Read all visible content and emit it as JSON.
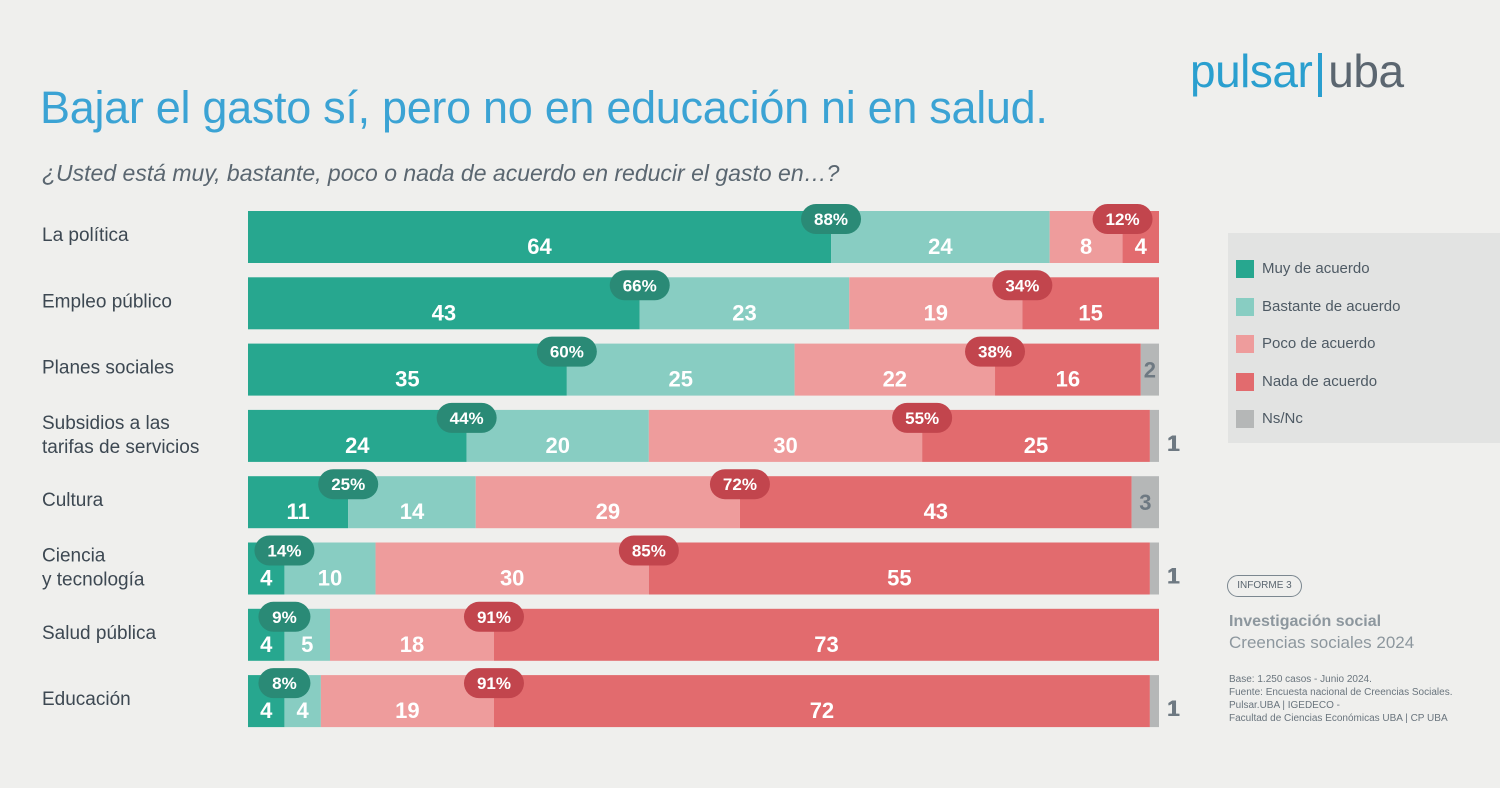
{
  "title": "Bajar el gasto sí, pero no en educación ni en salud.",
  "subtitle": "¿Usted está muy, bastante, poco o nada de acuerdo en reducir el gasto en…?",
  "logo": {
    "part1": "pulsar",
    "part2": "uba"
  },
  "legend": [
    {
      "label": "Muy de acuerdo",
      "color": "#27a78f"
    },
    {
      "label": "Bastante de acuerdo",
      "color": "#88cdc2"
    },
    {
      "label": "Poco de acuerdo",
      "color": "#ee9c9c"
    },
    {
      "label": "Nada de acuerdo",
      "color": "#e26b6e"
    },
    {
      "label": "Ns/Nc",
      "color": "#b5b7b7"
    }
  ],
  "report_tag": "INFORME 3",
  "investigation_title": "Investigación social",
  "investigation_subtitle": "Creencias sociales 2024",
  "source_lines": [
    "Base: 1.250 casos - Junio 2024.",
    "Fuente: Encuesta nacional de Creencias Sociales.",
    "Pulsar.UBA | IGEDECO -",
    "Facultad de Ciencias Económicas UBA | CP UBA"
  ],
  "chart_data": {
    "type": "bar",
    "orientation": "horizontal-stacked",
    "title": "Bajar el gasto sí, pero no en educación ni en salud.",
    "categories": [
      "La política",
      "Empleo público",
      "Planes sociales",
      "Subsidios a las tarifas de servicios",
      "Cultura",
      "Ciencia y tecnología",
      "Salud pública",
      "Educación"
    ],
    "category_lines": [
      [
        "La política"
      ],
      [
        "Empleo público"
      ],
      [
        "Planes sociales"
      ],
      [
        "Subsidios a las",
        "tarifas de servicios"
      ],
      [
        "Cultura"
      ],
      [
        "Ciencia",
        "y tecnología"
      ],
      [
        "Salud pública"
      ],
      [
        "Educación"
      ]
    ],
    "series": [
      {
        "name": "Muy de acuerdo",
        "color": "#27a78f",
        "values": [
          64,
          43,
          35,
          24,
          11,
          4,
          4,
          4
        ]
      },
      {
        "name": "Bastante de acuerdo",
        "color": "#88cdc2",
        "values": [
          24,
          23,
          25,
          20,
          14,
          10,
          5,
          4
        ]
      },
      {
        "name": "Poco de acuerdo",
        "color": "#ee9c9c",
        "values": [
          8,
          19,
          22,
          30,
          29,
          30,
          18,
          19
        ]
      },
      {
        "name": "Nada de acuerdo",
        "color": "#e26b6e",
        "values": [
          4,
          15,
          16,
          25,
          43,
          55,
          73,
          72
        ]
      },
      {
        "name": "Ns/Nc",
        "color": "#b5b7b7",
        "values": [
          0,
          0,
          2,
          1,
          3,
          1,
          0,
          1
        ]
      }
    ],
    "agree_totals": [
      "88%",
      "66%",
      "60%",
      "44%",
      "25%",
      "14%",
      "9%",
      "8%"
    ],
    "disagree_totals": [
      "12%",
      "34%",
      "38%",
      "55%",
      "72%",
      "85%",
      "91%",
      "91%"
    ],
    "agree_badge_color": "#2a8a76",
    "disagree_badge_color": "#c2454d",
    "xlim": [
      0,
      100
    ]
  }
}
